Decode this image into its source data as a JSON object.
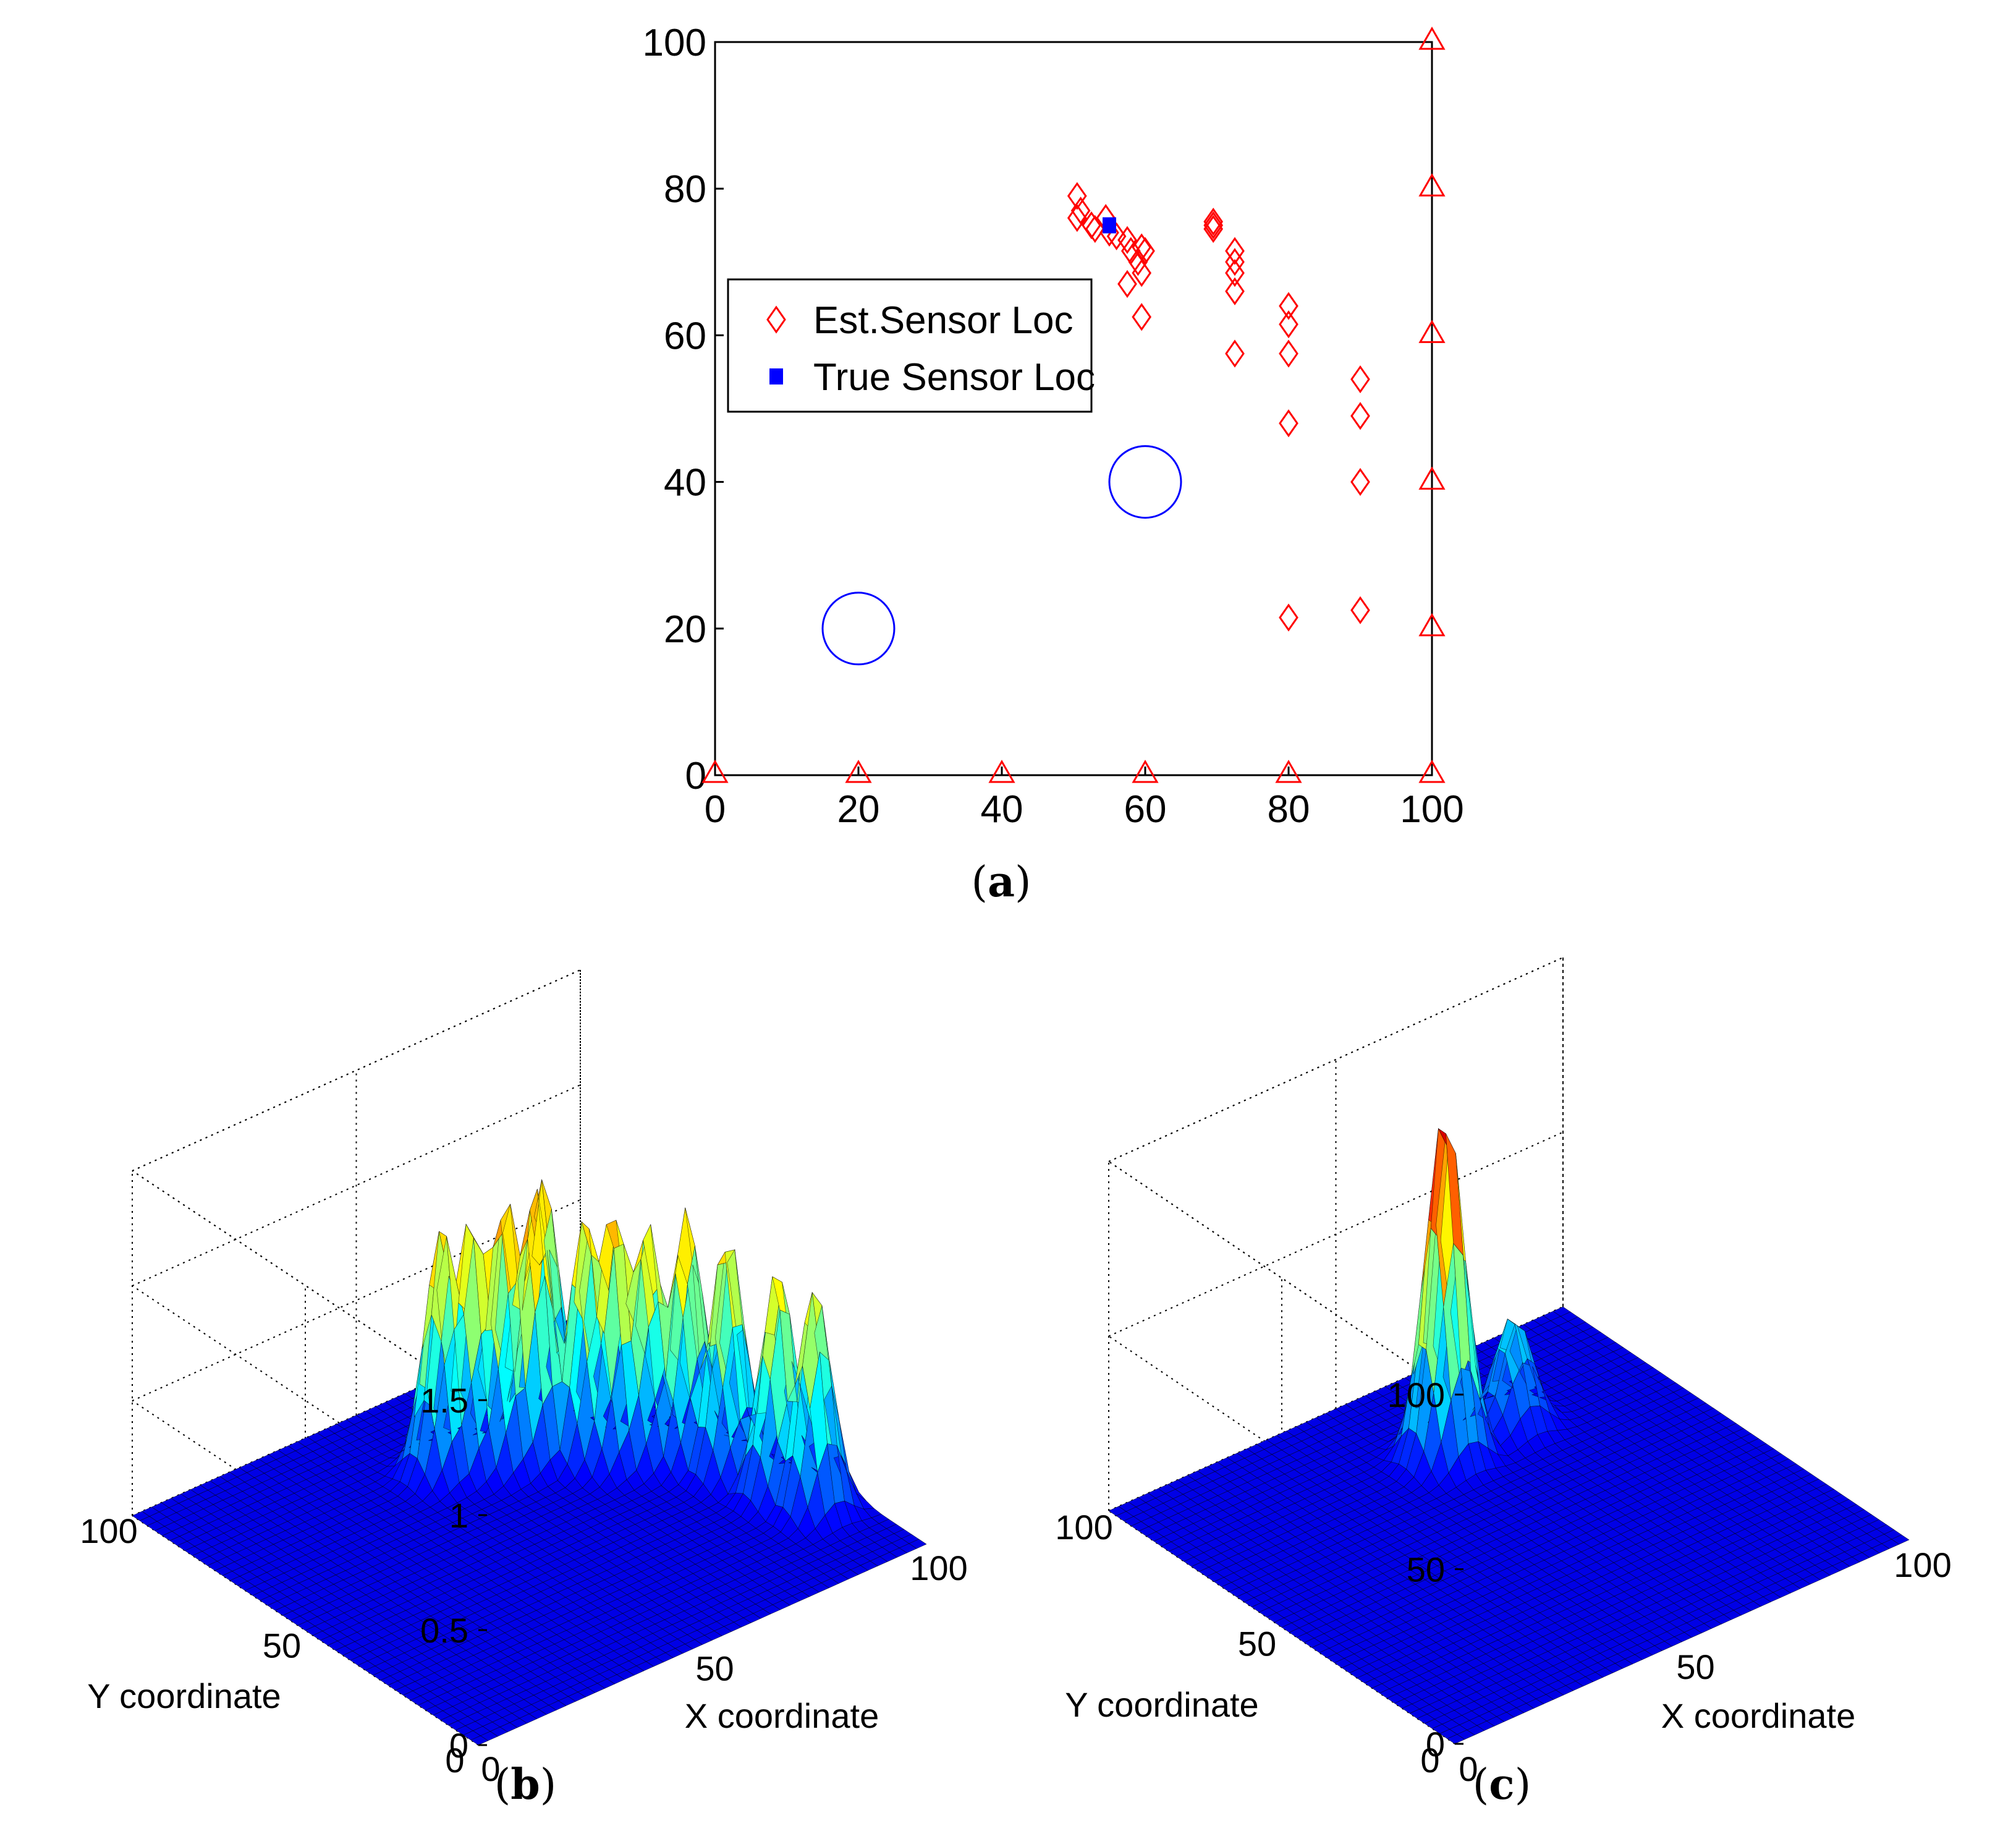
{
  "panels": {
    "a": {
      "caption_open": "(",
      "caption_letter": "a",
      "caption_close": ")"
    },
    "b": {
      "caption_open": "(",
      "caption_letter": "b",
      "caption_close": ")"
    },
    "c": {
      "caption_open": "(",
      "caption_letter": "c",
      "caption_close": ")"
    }
  },
  "chart_data": [
    {
      "id": "a",
      "type": "scatter",
      "xlim": [
        0,
        100
      ],
      "ylim": [
        0,
        100
      ],
      "xticks": [
        0,
        20,
        40,
        60,
        80,
        100
      ],
      "yticks": [
        0,
        20,
        40,
        60,
        80,
        100
      ],
      "legend": {
        "placement": "center-left",
        "entries": [
          "Est.Sensor Loc",
          "True Sensor Loc"
        ]
      },
      "series": [
        {
          "name": "Est.Sensor Loc",
          "marker": "diamond",
          "color": "#ff0000",
          "points": [
            [
              50.5,
              79
            ],
            [
              50.5,
              76
            ],
            [
              51,
              77
            ],
            [
              52.5,
              75
            ],
            [
              53,
              74.5
            ],
            [
              54.5,
              76
            ],
            [
              55,
              74
            ],
            [
              56,
              73.5
            ],
            [
              57.5,
              73
            ],
            [
              58,
              71.5
            ],
            [
              57.5,
              67
            ],
            [
              59,
              70
            ],
            [
              59.5,
              72
            ],
            [
              59.5,
              68.5
            ],
            [
              60,
              71.5
            ],
            [
              59.5,
              62.5
            ],
            [
              69.5,
              75.5
            ],
            [
              69.5,
              75
            ],
            [
              69.5,
              74.5
            ],
            [
              72.5,
              71.5
            ],
            [
              72.5,
              70
            ],
            [
              72.5,
              68.5
            ],
            [
              72.5,
              66
            ],
            [
              72.5,
              57.5
            ],
            [
              80,
              64
            ],
            [
              80,
              61.5
            ],
            [
              80,
              57.5
            ],
            [
              80,
              48
            ],
            [
              80,
              21.5
            ],
            [
              90,
              54
            ],
            [
              90,
              49
            ],
            [
              90,
              40
            ],
            [
              90,
              22.5
            ]
          ]
        },
        {
          "name": "True Sensor Loc",
          "marker": "square",
          "color": "#0000ff",
          "points": [
            [
              55,
              75
            ]
          ]
        },
        {
          "marker": "triangle",
          "color": "#ff0000",
          "points": [
            [
              0,
              0
            ],
            [
              20,
              0
            ],
            [
              40,
              0
            ],
            [
              60,
              0
            ],
            [
              80,
              0
            ],
            [
              100,
              0
            ],
            [
              100,
              20
            ],
            [
              100,
              40
            ],
            [
              100,
              60
            ],
            [
              100,
              80
            ],
            [
              100,
              100
            ]
          ]
        },
        {
          "marker": "circle",
          "color": "#0000ff",
          "radius_data_units": 5,
          "points": [
            [
              20,
              20
            ],
            [
              60,
              40
            ]
          ]
        }
      ]
    },
    {
      "id": "b",
      "type": "surface3d",
      "xlabel": "X coordinate",
      "ylabel": "Y coordinate",
      "zlim": [
        0,
        1.5
      ],
      "zticks": [
        "0",
        "0.5",
        "1",
        "1.5"
      ],
      "xticks": [
        "0",
        "50",
        "100"
      ],
      "yticks": [
        "0",
        "50",
        "100"
      ],
      "colormap": "jet",
      "peaks": [
        {
          "x": 50,
          "y": 75,
          "z": 1.1
        },
        {
          "x": 55,
          "y": 73,
          "z": 1.12
        },
        {
          "x": 60,
          "y": 70,
          "z": 1.18
        },
        {
          "x": 65,
          "y": 68,
          "z": 1.2
        },
        {
          "x": 70,
          "y": 72,
          "z": 1.15
        },
        {
          "x": 72,
          "y": 62,
          "z": 1.08
        },
        {
          "x": 75,
          "y": 58,
          "z": 1.12
        },
        {
          "x": 80,
          "y": 55,
          "z": 1.05
        },
        {
          "x": 85,
          "y": 50,
          "z": 1.1
        },
        {
          "x": 88,
          "y": 42,
          "z": 1.05
        },
        {
          "x": 90,
          "y": 30,
          "z": 1.0
        },
        {
          "x": 92,
          "y": 22,
          "z": 0.98
        }
      ]
    },
    {
      "id": "c",
      "type": "surface3d",
      "xlabel": "X coordinate",
      "ylabel": "Y coordinate",
      "zlim": [
        0,
        100
      ],
      "zticks": [
        "0",
        "50",
        "100"
      ],
      "xticks": [
        "0",
        "50",
        "100"
      ],
      "yticks": [
        "0",
        "50",
        "100"
      ],
      "colormap": "jet",
      "peaks": [
        {
          "x": 55,
          "y": 75,
          "z": 100
        },
        {
          "x": 70,
          "y": 75,
          "z": 32
        }
      ]
    }
  ]
}
